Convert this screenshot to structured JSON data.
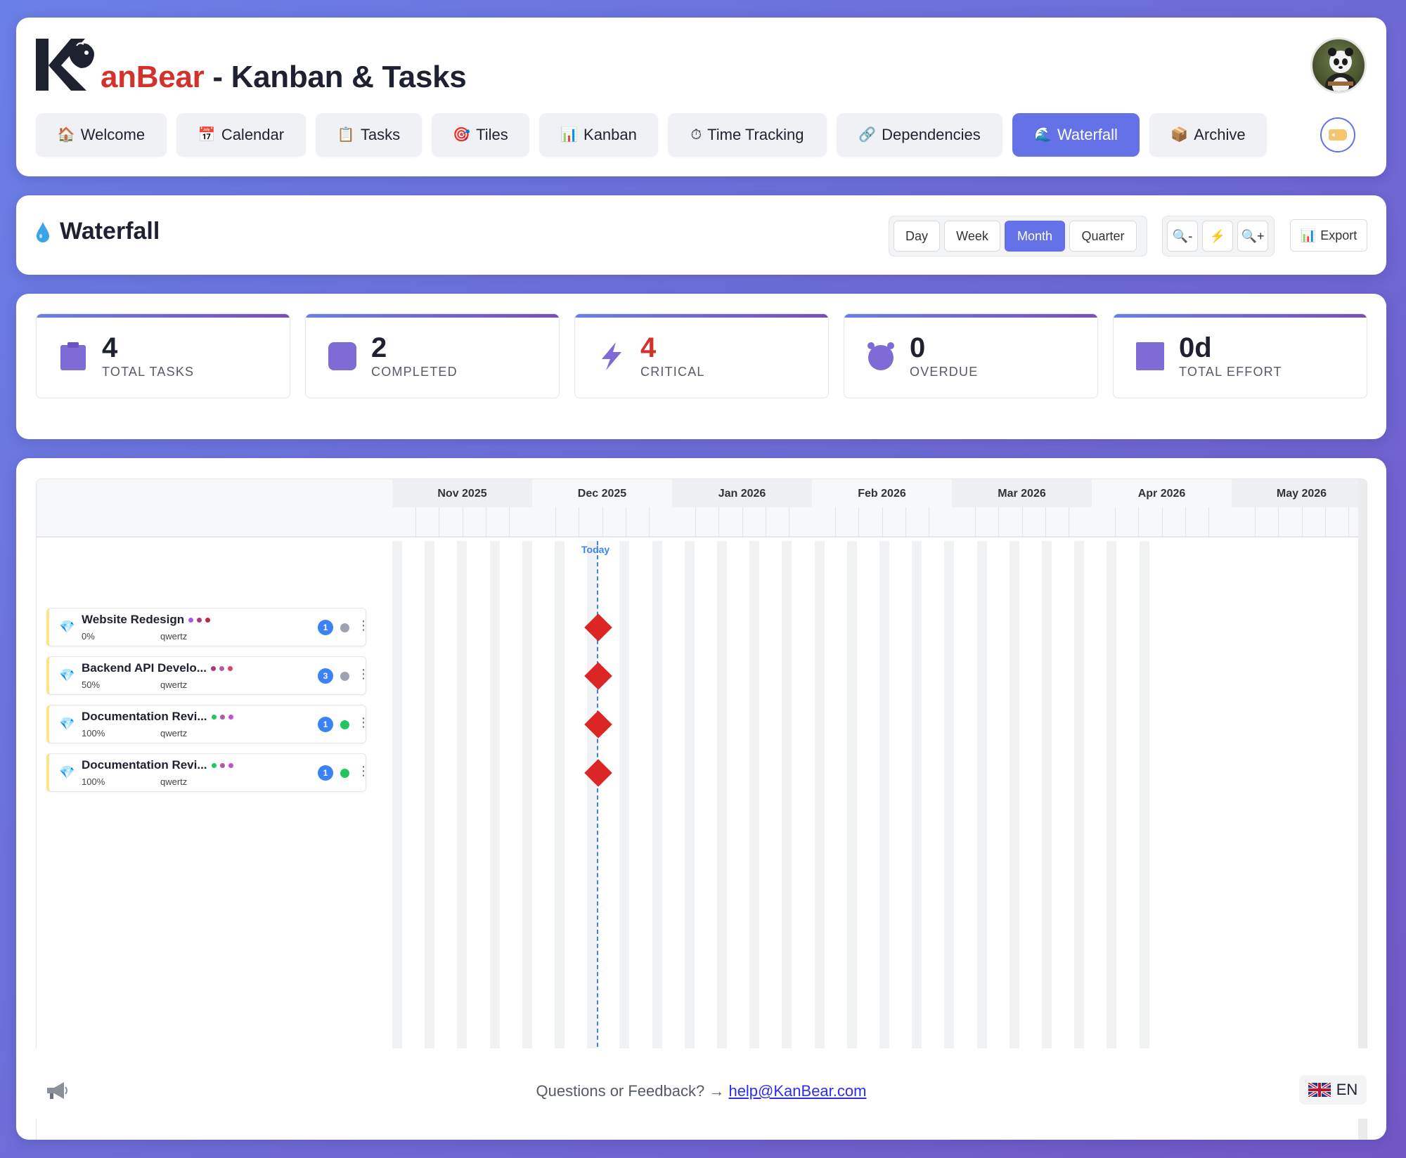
{
  "header": {
    "brand_prefix": "anBear",
    "brand_suffix": " - Kanban & Tasks",
    "nav": [
      {
        "label": "Welcome",
        "icon": "🏠"
      },
      {
        "label": "Calendar",
        "icon": "📅"
      },
      {
        "label": "Tasks",
        "icon": "📋"
      },
      {
        "label": "Tiles",
        "icon": "🎯"
      },
      {
        "label": "Kanban",
        "icon": "📊"
      },
      {
        "label": "Time Tracking",
        "icon": "⏱"
      },
      {
        "label": "Dependencies",
        "icon": "🔗"
      },
      {
        "label": "Waterfall",
        "icon": "🌊",
        "active": true
      },
      {
        "label": "Archive",
        "icon": "📦"
      }
    ]
  },
  "toolbar": {
    "title": "Waterfall",
    "views": [
      "Day",
      "Week",
      "Month",
      "Quarter"
    ],
    "active_view": "Month",
    "zoom_out": "🔍-",
    "zoom_fit": "⚡",
    "zoom_in": "🔍+",
    "export_label": "Export",
    "export_icon": "📊"
  },
  "stats": [
    {
      "value": "4",
      "label": "TOTAL TASKS",
      "icon": "clipboard-icon"
    },
    {
      "value": "2",
      "label": "COMPLETED",
      "icon": "check-square-icon"
    },
    {
      "value": "4",
      "label": "CRITICAL",
      "icon": "lightning-icon",
      "red": true
    },
    {
      "value": "0",
      "label": "OVERDUE",
      "icon": "alarm-clock-icon"
    },
    {
      "value": "0d",
      "label": "TOTAL EFFORT",
      "icon": "stopwatch-icon"
    }
  ],
  "gantt": {
    "months": [
      "Nov 2025",
      "Dec 2025",
      "Jan 2026",
      "Feb 2026",
      "Mar 2026",
      "Apr 2026",
      "May 2026"
    ],
    "today_label": "Today",
    "tasks": [
      {
        "name": "Website Redesign",
        "progress": "0%",
        "owner": "qwertz",
        "badge": "1",
        "status_color": "#9ca3af",
        "dots": [
          "#a855f7",
          "#b0377d",
          "#c0273e"
        ]
      },
      {
        "name": "Backend API Develo...",
        "progress": "50%",
        "owner": "qwertz",
        "badge": "3",
        "status_color": "#9ca3af",
        "dots": [
          "#b0377d",
          "#b15aa8",
          "#d9455d"
        ]
      },
      {
        "name": "Documentation Revi...",
        "progress": "100%",
        "owner": "qwertz",
        "badge": "1",
        "status_color": "#22c55e",
        "dots": [
          "#22c55e",
          "#b15aa8",
          "#c24fd6"
        ]
      },
      {
        "name": "Documentation Revi...",
        "progress": "100%",
        "owner": "qwertz",
        "badge": "1",
        "status_color": "#22c55e",
        "dots": [
          "#22c55e",
          "#b15aa8",
          "#c24fd6"
        ]
      }
    ],
    "milestone_color": "#dc2626"
  },
  "footer": {
    "feedback_text": "Questions or Feedback? → ",
    "email": "help@KanBear.com",
    "lang": "EN"
  }
}
